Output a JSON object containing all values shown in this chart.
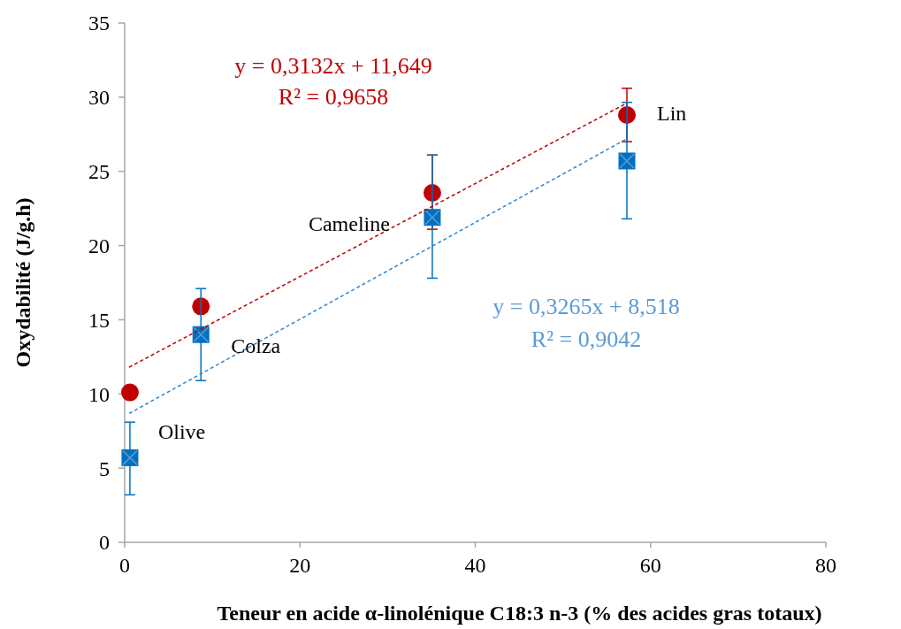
{
  "chart_data": {
    "type": "scatter",
    "xlabel": "Teneur en acide α-linolénique C18:3 n-3 (% des acides gras totaux)",
    "ylabel": "Oxydabilité (J/g.h)",
    "xlim": [
      0,
      80
    ],
    "xticks": [
      0,
      20,
      40,
      60,
      80
    ],
    "ylim": [
      0,
      35
    ],
    "yticks": [
      0,
      5,
      10,
      15,
      20,
      25,
      30,
      35
    ],
    "grid": false,
    "series": [
      {
        "color": "#c00000",
        "marker": "circle",
        "x": [
          0.6,
          8.7,
          35.1,
          57.3
        ],
        "values": [
          10.1,
          15.9,
          23.55,
          28.8
        ],
        "errors": [
          null,
          null,
          [
            21.1,
            26.1
          ],
          [
            27.0,
            30.6
          ]
        ]
      },
      {
        "color": "#0070c0",
        "marker": "square",
        "x": [
          0.6,
          8.7,
          35.1,
          57.3
        ],
        "values": [
          5.7,
          14.0,
          21.9,
          25.7
        ],
        "errors": [
          [
            3.2,
            8.1
          ],
          [
            10.9,
            17.1
          ],
          [
            17.8,
            26.1
          ],
          [
            21.8,
            29.65
          ]
        ]
      },
      {
        "type": "line",
        "color": "#c00000",
        "line_style": "dashed",
        "x": [
          0.5,
          57.3
        ],
        "values": [
          11.8,
          29.6
        ]
      },
      {
        "type": "line",
        "color": "#2e86d0",
        "line_style": "dashed",
        "x": [
          0.5,
          57.3
        ],
        "values": [
          8.68,
          27.2
        ]
      }
    ],
    "annotations": [
      "y = 0,3132x + 11,649",
      "R² = 0,9658",
      "y = 0,3265x + 8,518",
      "R² = 0,9042",
      {
        "text": "Olive",
        "x": 0.6,
        "y": 5.7
      },
      {
        "text": "Colza",
        "x": 8.7,
        "y": 14.0
      },
      {
        "text": "Cameline",
        "x": 35.1,
        "y": 21.9
      },
      {
        "text": "Lin",
        "x": 57.3,
        "y": 28.8
      }
    ]
  }
}
